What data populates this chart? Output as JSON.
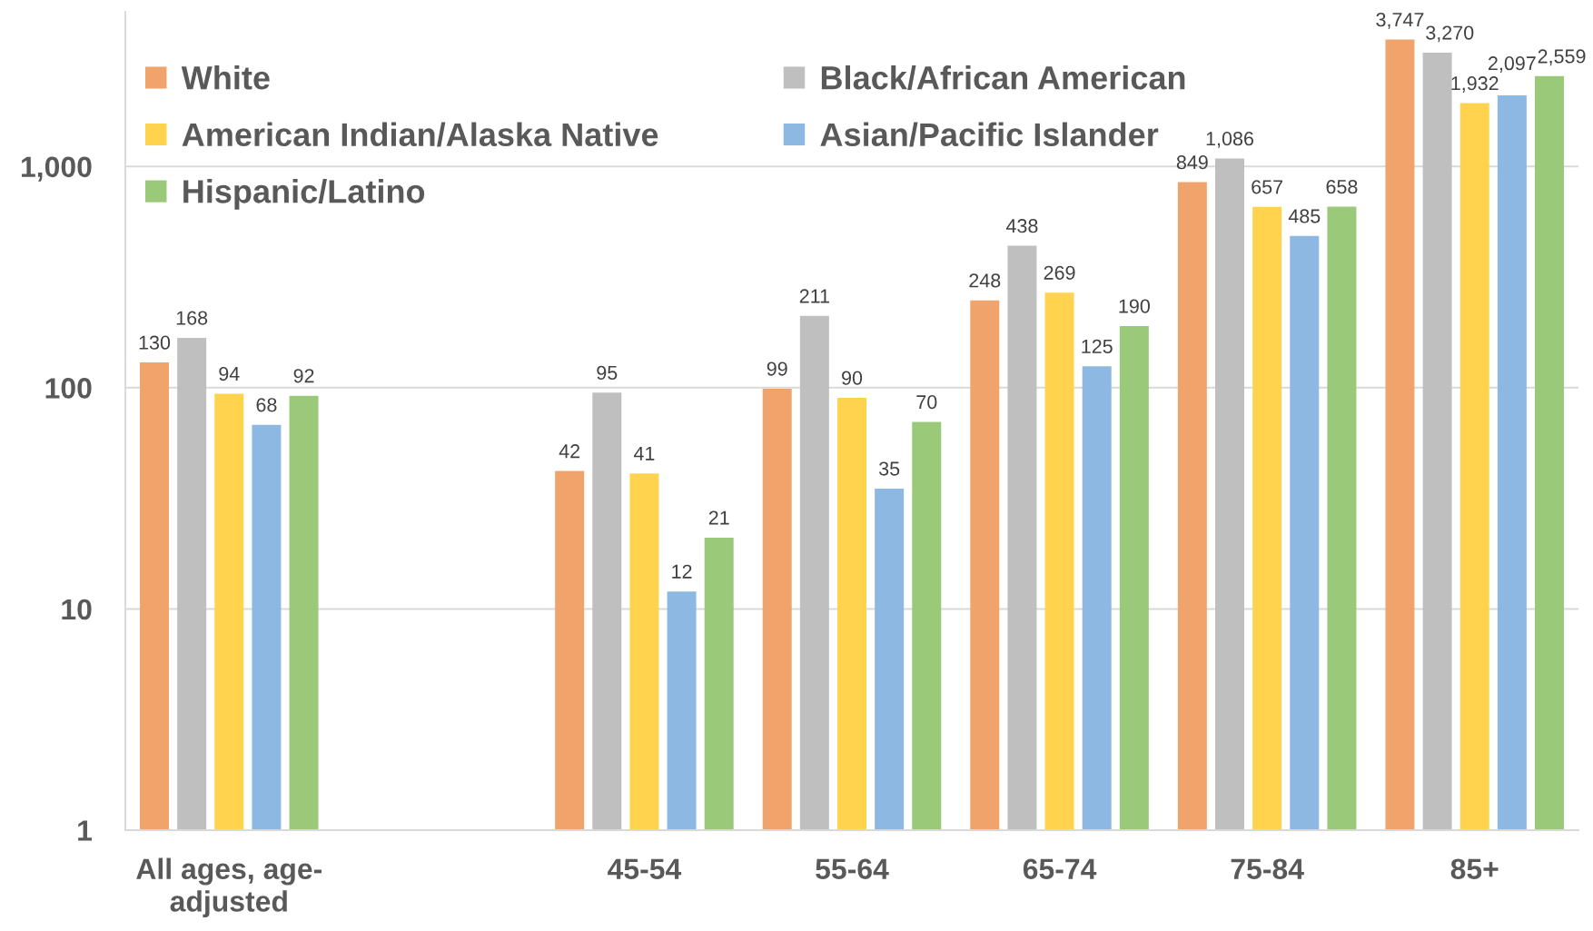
{
  "chart_data": {
    "type": "bar",
    "categories": [
      "All ages, age-adjusted",
      null,
      "45-54",
      "55-64",
      "65-74",
      "75-84",
      "85+"
    ],
    "series": [
      {
        "name": "White",
        "color": "#F0A46C",
        "values": [
          130,
          null,
          42,
          99,
          248,
          849,
          3747
        ],
        "value_labels": [
          "130",
          null,
          "42",
          "99",
          "248",
          "849",
          "3,747"
        ]
      },
      {
        "name": "Black/African American",
        "color": "#BFBFBF",
        "values": [
          168,
          null,
          95,
          211,
          438,
          1086,
          3270
        ],
        "value_labels": [
          "168",
          null,
          "95",
          "211",
          "438",
          "1,086",
          "3,270"
        ]
      },
      {
        "name": "American Indian/Alaska Native",
        "color": "#FFD34D",
        "values": [
          94,
          null,
          41,
          90,
          269,
          657,
          1932
        ],
        "value_labels": [
          "94",
          null,
          "41",
          "90",
          "269",
          "657",
          "1,932"
        ]
      },
      {
        "name": "Asian/Pacific Islander",
        "color": "#8DB8E2",
        "values": [
          68,
          null,
          12,
          35,
          125,
          485,
          2097
        ],
        "value_labels": [
          "68",
          null,
          "12",
          "35",
          "125",
          "485",
          "2,097"
        ]
      },
      {
        "name": "Hispanic/Latino",
        "color": "#9BC97A",
        "values": [
          92,
          null,
          21,
          70,
          190,
          658,
          2559
        ],
        "value_labels": [
          "92",
          null,
          "21",
          "70",
          "190",
          "658",
          "2,559"
        ]
      }
    ],
    "log": true,
    "ylim": [
      1,
      5000
    ],
    "yticks": [
      1,
      10,
      100,
      {
        "value": 1000,
        "label": "1,000"
      }
    ],
    "grid": "y",
    "legend": "top left"
  }
}
